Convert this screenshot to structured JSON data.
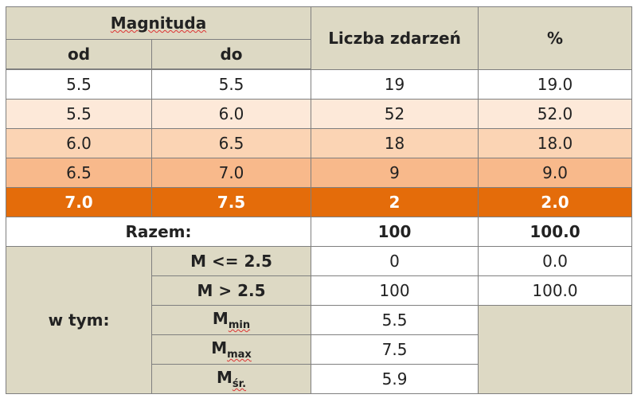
{
  "table": {
    "header": {
      "magnitude": "Magnituda",
      "from": "od",
      "to": "do",
      "count": "Liczba zdarzeń",
      "percent": "%"
    },
    "rows": [
      [
        "5.5",
        "5.5",
        "19",
        "19.0"
      ],
      [
        "5.5",
        "6.0",
        "52",
        "52.0"
      ],
      [
        "6.0",
        "6.5",
        "18",
        "18.0"
      ],
      [
        "6.5",
        "7.0",
        "9",
        "9.0"
      ],
      [
        "7.0",
        "7.5",
        "2",
        "2.0"
      ]
    ],
    "total": {
      "label": "Razem:",
      "count": "100",
      "percent": "100.0"
    },
    "subset": {
      "label": "w tym:",
      "rows": [
        {
          "label": "M <= 2.5",
          "count": "0",
          "percent": "0.0"
        },
        {
          "label": "M > 2.5",
          "count": "100",
          "percent": "100.0"
        },
        {
          "symbol": "M",
          "sub": "min",
          "value": "5.5"
        },
        {
          "symbol": "M",
          "sub": "max",
          "value": "7.5"
        },
        {
          "symbol": "M",
          "sub": "śr.",
          "value": "5.9"
        }
      ]
    }
  }
}
